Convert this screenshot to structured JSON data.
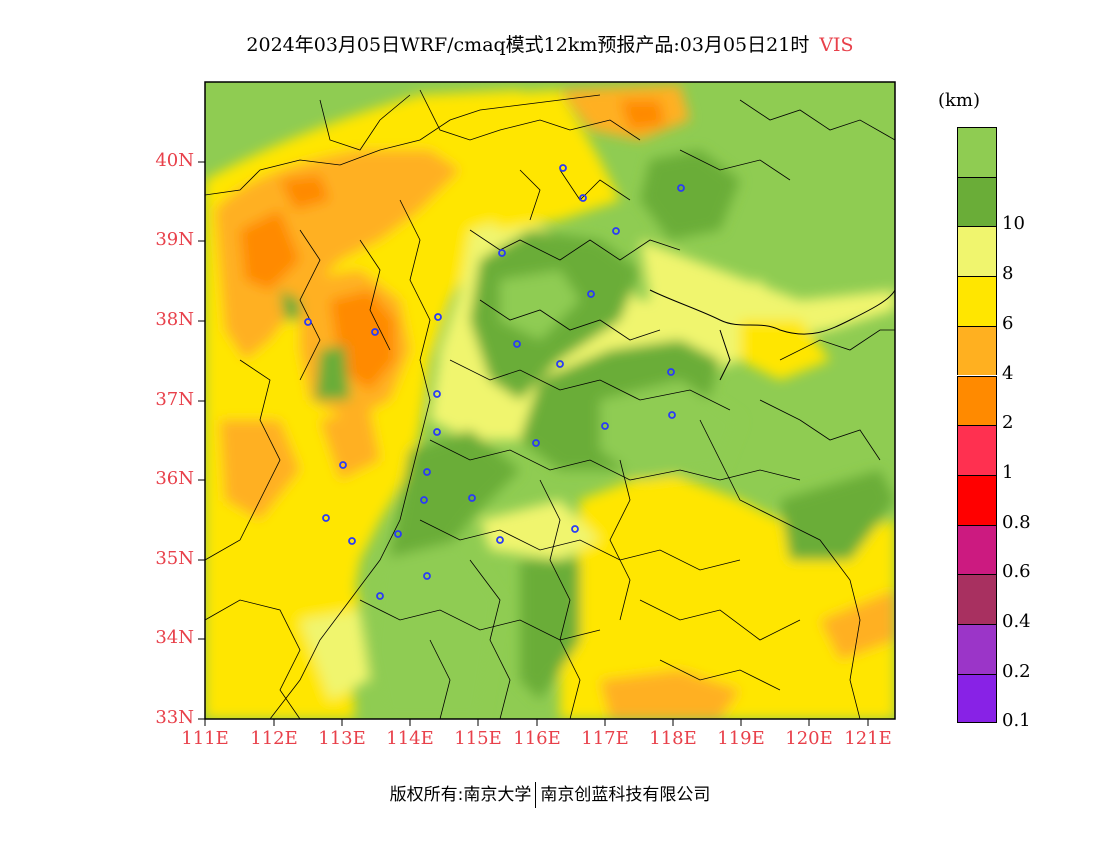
{
  "title": "2024年03月05日WRF/cmaq模式12km预报产品:03月05日21时",
  "variable": "VIS",
  "unit": "(km)",
  "y_ticks": [
    "40N",
    "39N",
    "38N",
    "37N",
    "36N",
    "35N",
    "34N",
    "33N"
  ],
  "x_ticks": [
    "111E",
    "112E",
    "113E",
    "114E",
    "115E",
    "116E",
    "117E",
    "118E",
    "119E",
    "120E",
    "121E"
  ],
  "colorbar": [
    {
      "label": "",
      "color": "#8fcc52"
    },
    {
      "label": "10",
      "color": "#6aad38"
    },
    {
      "label": "8",
      "color": "#f0f56e"
    },
    {
      "label": "6",
      "color": "#ffe600"
    },
    {
      "label": "4",
      "color": "#ffb020"
    },
    {
      "label": "2",
      "color": "#ff8a00"
    },
    {
      "label": "1",
      "color": "#ff3050"
    },
    {
      "label": "0.8",
      "color": "#ff0000"
    },
    {
      "label": "0.6",
      "color": "#cc1a80"
    },
    {
      "label": "0.4",
      "color": "#a83060"
    },
    {
      "label": "0.2",
      "color": "#9b35c8"
    },
    {
      "label": "0.1",
      "color": "#8822e6"
    }
  ],
  "footer": {
    "left": "版权所有:南京大学",
    "right": "南京创蓝科技有限公司"
  }
}
